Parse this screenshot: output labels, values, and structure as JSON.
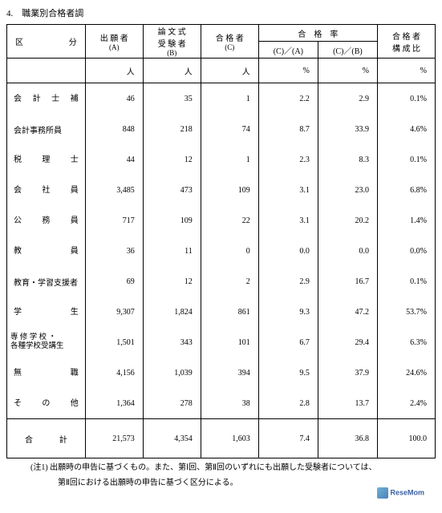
{
  "title": "4.　職業別合格者調",
  "header": {
    "category": "区　分",
    "applicants": "出 願 者",
    "applicants_sub": "(A)",
    "examinees": "論 文 式",
    "examinees2": "受 験 者",
    "examinees_sub": "(B)",
    "passers": "合 格 者",
    "passers_sub": "(C)",
    "pass_rate": "合　格　率",
    "rate_ca": "(C)／(A)",
    "rate_cb": "(C)／(B)",
    "ratio": "合 格 者",
    "ratio2": "構 成 比"
  },
  "units": {
    "person": "人",
    "percent": "%"
  },
  "rows": [
    {
      "name": "会計士補",
      "style": "spread",
      "a": "46",
      "b": "35",
      "c": "1",
      "ca": "2.2",
      "cb": "2.9",
      "r": "0.1%"
    },
    {
      "name": "会計事務所員",
      "style": "plain",
      "a": "848",
      "b": "218",
      "c": "74",
      "ca": "8.7",
      "cb": "33.9",
      "r": "4.6%"
    },
    {
      "name": "税理士",
      "style": "spread",
      "a": "44",
      "b": "12",
      "c": "1",
      "ca": "2.3",
      "cb": "8.3",
      "r": "0.1%"
    },
    {
      "name": "会社員",
      "style": "spread",
      "a": "3,485",
      "b": "473",
      "c": "109",
      "ca": "3.1",
      "cb": "23.0",
      "r": "6.8%"
    },
    {
      "name": "公務員",
      "style": "spread",
      "a": "717",
      "b": "109",
      "c": "22",
      "ca": "3.1",
      "cb": "20.2",
      "r": "1.4%"
    },
    {
      "name": "教員",
      "style": "spread",
      "a": "36",
      "b": "11",
      "c": "0",
      "ca": "0.0",
      "cb": "0.0",
      "r": "0.0%"
    },
    {
      "name": "教育・学習支援者",
      "style": "plain",
      "a": "69",
      "b": "12",
      "c": "2",
      "ca": "2.9",
      "cb": "16.7",
      "r": "0.1%"
    },
    {
      "name": "学生",
      "style": "spread",
      "a": "9,307",
      "b": "1,824",
      "c": "861",
      "ca": "9.3",
      "cb": "47.2",
      "r": "53.7%"
    },
    {
      "name": "専 修 学 校 ・<br>各種学校受講生",
      "style": "multi",
      "a": "1,501",
      "b": "343",
      "c": "101",
      "ca": "6.7",
      "cb": "29.4",
      "r": "6.3%"
    },
    {
      "name": "無職",
      "style": "spread",
      "a": "4,156",
      "b": "1,039",
      "c": "394",
      "ca": "9.5",
      "cb": "37.9",
      "r": "24.6%"
    },
    {
      "name": "その他",
      "style": "spread",
      "a": "1,364",
      "b": "278",
      "c": "38",
      "ca": "2.8",
      "cb": "13.7",
      "r": "2.4%"
    }
  ],
  "total": {
    "label": "合　計",
    "a": "21,573",
    "b": "4,354",
    "c": "1,603",
    "ca": "7.4",
    "cb": "36.8",
    "r": "100.0"
  },
  "note1": "(注1) 出願時の申告に基づくもの。また、第Ⅰ回、第Ⅱ回のいずれにも出願した受験者については、",
  "note2": "第Ⅱ回における出願時の申告に基づく区分による。",
  "logo_text": "ReseMom"
}
